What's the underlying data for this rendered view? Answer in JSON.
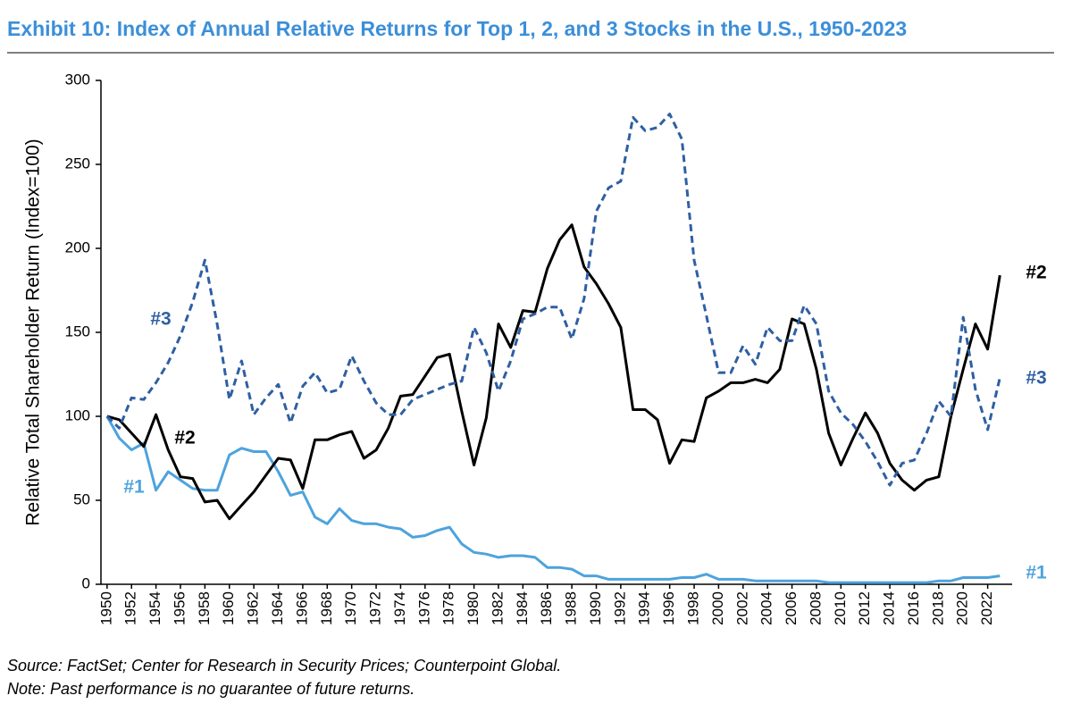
{
  "chart_data": {
    "type": "line",
    "title": "Exhibit 10: Index of Annual Relative Returns for Top 1, 2, and 3 Stocks in the U.S., 1950-2023",
    "y_label": "Relative Total Shareholder Return (Index=100)",
    "source": "Source: FactSet; Center for Research in Security Prices; Counterpoint Global.",
    "note": "Note: Past performance is no guarantee of future returns.",
    "x": [
      1950,
      1951,
      1952,
      1953,
      1954,
      1955,
      1956,
      1957,
      1958,
      1959,
      1960,
      1961,
      1962,
      1963,
      1964,
      1965,
      1966,
      1967,
      1968,
      1969,
      1970,
      1971,
      1972,
      1973,
      1974,
      1975,
      1976,
      1977,
      1978,
      1979,
      1980,
      1981,
      1982,
      1983,
      1984,
      1985,
      1986,
      1987,
      1988,
      1989,
      1990,
      1991,
      1992,
      1993,
      1994,
      1995,
      1996,
      1997,
      1998,
      1999,
      2000,
      2001,
      2002,
      2003,
      2004,
      2005,
      2006,
      2007,
      2008,
      2009,
      2010,
      2011,
      2012,
      2013,
      2014,
      2015,
      2016,
      2017,
      2018,
      2019,
      2020,
      2021,
      2022,
      2023
    ],
    "xlim": [
      1949.5,
      2024
    ],
    "xticks": [
      1950,
      1952,
      1954,
      1956,
      1958,
      1960,
      1962,
      1964,
      1966,
      1968,
      1970,
      1972,
      1974,
      1976,
      1978,
      1980,
      1982,
      1984,
      1986,
      1988,
      1990,
      1992,
      1994,
      1996,
      1998,
      2000,
      2002,
      2004,
      2006,
      2008,
      2010,
      2012,
      2014,
      2016,
      2018,
      2020,
      2022
    ],
    "ylim": [
      0,
      300
    ],
    "yticks": [
      0,
      50,
      100,
      150,
      200,
      250,
      300
    ],
    "grid": false,
    "series": [
      {
        "name": "#1",
        "color": "#4da3dd",
        "dash": false,
        "values": [
          100,
          87,
          80,
          84,
          56,
          67,
          62,
          57,
          56,
          56,
          77,
          81,
          79,
          79,
          67,
          53,
          55,
          40,
          36,
          45,
          38,
          36,
          36,
          34,
          33,
          28,
          29,
          32,
          34,
          24,
          19,
          18,
          16,
          17,
          17,
          16,
          10,
          10,
          9,
          5,
          5,
          3,
          3,
          3,
          3,
          3,
          3,
          4,
          4,
          6,
          3,
          3,
          3,
          2,
          2,
          2,
          2,
          2,
          2,
          1,
          1,
          1,
          1,
          1,
          1,
          1,
          1,
          1,
          2,
          2,
          4,
          4,
          4,
          5
        ]
      },
      {
        "name": "#2",
        "color": "#000000",
        "dash": false,
        "values": [
          100,
          98,
          90,
          82,
          101,
          80,
          64,
          63,
          49,
          50,
          39,
          47,
          55,
          65,
          75,
          74,
          57,
          86,
          86,
          89,
          91,
          75,
          80,
          93,
          112,
          113,
          124,
          135,
          137,
          103,
          71,
          99,
          155,
          141,
          163,
          162,
          188,
          205,
          214,
          189,
          179,
          167,
          153,
          104,
          104,
          98,
          72,
          86,
          85,
          111,
          115,
          120,
          120,
          122,
          120,
          128,
          158,
          155,
          128,
          90,
          71,
          87,
          102,
          90,
          72,
          62,
          56,
          62,
          64,
          100,
          128,
          155,
          140,
          184
        ]
      },
      {
        "name": "#3",
        "color": "#2e5fa3",
        "dash": true,
        "values": [
          100,
          93,
          111,
          110,
          120,
          132,
          148,
          168,
          193,
          155,
          110,
          133,
          101,
          111,
          119,
          96,
          118,
          126,
          114,
          116,
          136,
          121,
          108,
          101,
          101,
          110,
          113,
          116,
          119,
          121,
          153,
          138,
          115,
          133,
          158,
          161,
          165,
          165,
          146,
          170,
          222,
          236,
          240,
          278,
          270,
          272,
          280,
          265,
          193,
          160,
          126,
          126,
          142,
          131,
          153,
          145,
          145,
          166,
          155,
          115,
          102,
          95,
          85,
          73,
          59,
          72,
          74,
          90,
          109,
          100,
          159,
          116,
          92,
          123
        ]
      }
    ]
  }
}
